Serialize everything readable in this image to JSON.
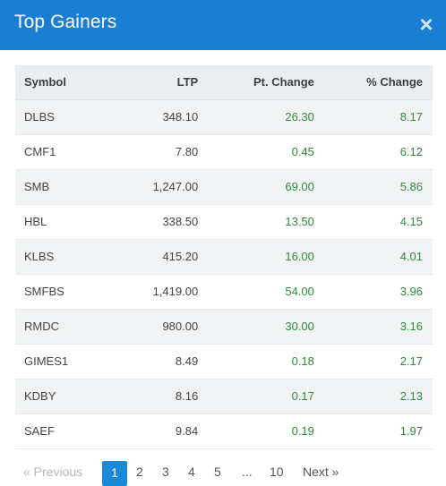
{
  "header": {
    "title": "Top Gainers",
    "close_label": "×"
  },
  "table": {
    "columns": [
      "Symbol",
      "LTP",
      "Pt. Change",
      "% Change"
    ],
    "rows": [
      {
        "symbol": "DLBS",
        "ltp": "348.10",
        "pt_change": "26.30",
        "pct_change": "8.17"
      },
      {
        "symbol": "CMF1",
        "ltp": "7.80",
        "pt_change": "0.45",
        "pct_change": "6.12"
      },
      {
        "symbol": "SMB",
        "ltp": "1,247.00",
        "pt_change": "69.00",
        "pct_change": "5.86"
      },
      {
        "symbol": "HBL",
        "ltp": "338.50",
        "pt_change": "13.50",
        "pct_change": "4.15"
      },
      {
        "symbol": "KLBS",
        "ltp": "415.20",
        "pt_change": "16.00",
        "pct_change": "4.01"
      },
      {
        "symbol": "SMFBS",
        "ltp": "1,419.00",
        "pt_change": "54.00",
        "pct_change": "3.96"
      },
      {
        "symbol": "RMDC",
        "ltp": "980.00",
        "pt_change": "30.00",
        "pct_change": "3.16"
      },
      {
        "symbol": "GIMES1",
        "ltp": "8.49",
        "pt_change": "0.18",
        "pct_change": "2.17"
      },
      {
        "symbol": "KDBY",
        "ltp": "8.16",
        "pt_change": "0.17",
        "pct_change": "2.13"
      },
      {
        "symbol": "SAEF",
        "ltp": "9.84",
        "pt_change": "0.19",
        "pct_change": "1.97"
      }
    ]
  },
  "pagination": {
    "previous_label": "« Previous",
    "active_page": "1",
    "pages": [
      "2",
      "3",
      "4",
      "5",
      "...",
      "10"
    ],
    "next_label": "Next »"
  },
  "colors": {
    "header_bg": "#1a7fd4",
    "gain": "#2e8b3a",
    "active_page": "#1a8ad8"
  }
}
